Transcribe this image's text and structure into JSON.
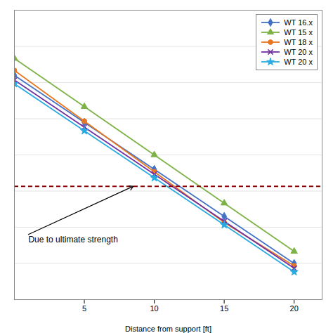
{
  "chart_data": {
    "type": "line",
    "x": [
      0,
      5,
      10,
      15,
      20
    ],
    "series": [
      {
        "name": "WT 16.x",
        "color": "#4472C4",
        "marker": "diamond",
        "values": [
          7.8,
          5.85,
          3.9,
          1.95,
          0.0
        ]
      },
      {
        "name": "WT 15 x",
        "color": "#7DB346",
        "marker": "triangle",
        "values": [
          8.5,
          6.5,
          4.5,
          2.5,
          0.5
        ]
      },
      {
        "name": "WT 18 x",
        "color": "#E87722",
        "marker": "circle",
        "values": [
          8.0,
          5.9,
          3.8,
          1.7,
          -0.1
        ]
      },
      {
        "name": "WT 20 x",
        "color": "#7030A0",
        "marker": "x",
        "values": [
          7.6,
          5.65,
          3.7,
          1.75,
          -0.2
        ]
      },
      {
        "name": "WT 20 x",
        "color": "#29ABE2",
        "marker": "star",
        "values": [
          7.45,
          5.5,
          3.55,
          1.6,
          -0.35
        ]
      }
    ],
    "xlabel": "Distance from support [ft]",
    "xlim": [
      0,
      22
    ],
    "xticks": [
      5,
      10,
      15,
      20
    ],
    "ylim": [
      -1.5,
      10.5
    ],
    "yticks": [
      -1.5,
      0,
      1.5,
      3,
      4.5,
      6,
      7.5,
      9,
      10.5
    ],
    "grid": "y",
    "tick_labels": "x",
    "legend": "upper right",
    "hlines": [
      {
        "y": 3.2,
        "color": "#8B0000",
        "line_style": "dashed"
      }
    ],
    "annotations": [
      {
        "text": "Due to ultimate strength",
        "xy": [
          8.5,
          3.2
        ],
        "xytext": [
          1.0,
          1.2
        ]
      }
    ]
  }
}
